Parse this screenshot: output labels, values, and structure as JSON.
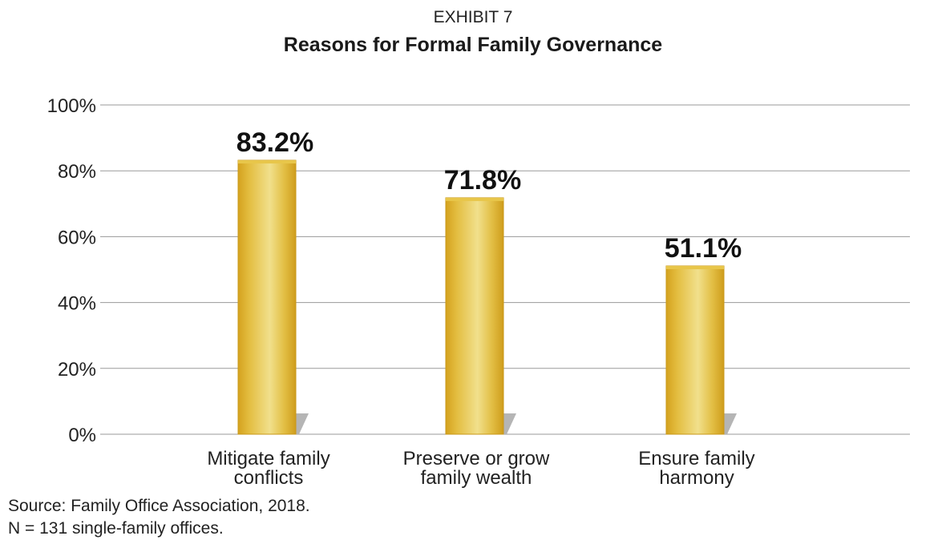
{
  "header": {
    "exhibit": "EXHIBIT 7",
    "title": "Reasons for Formal Family Governance"
  },
  "footer": {
    "source": "Source: Family Office Association, 2018.",
    "note": "N = 131 single-family offices."
  },
  "chart_data": {
    "type": "bar",
    "title": "Reasons for Formal Family Governance",
    "categories": [
      [
        "Mitigate family",
        "conflicts"
      ],
      [
        "Preserve or grow",
        "family wealth"
      ],
      [
        "Ensure family",
        "harmony"
      ]
    ],
    "values": [
      83.2,
      71.8,
      51.1
    ],
    "value_labels": [
      "83.2%",
      "71.8%",
      "51.1%"
    ],
    "ylim": [
      0,
      100
    ],
    "yticks": [
      0,
      20,
      40,
      60,
      80,
      100
    ],
    "ytick_labels": [
      "0%",
      "20%",
      "40%",
      "60%",
      "80%",
      "100%"
    ],
    "grid": true,
    "legend": "none",
    "colors": {
      "bar_dark": "#d9a826",
      "bar_light": "#f0de8a",
      "shadow": "#b5b5b5",
      "grid": "#9a9a9a"
    }
  }
}
